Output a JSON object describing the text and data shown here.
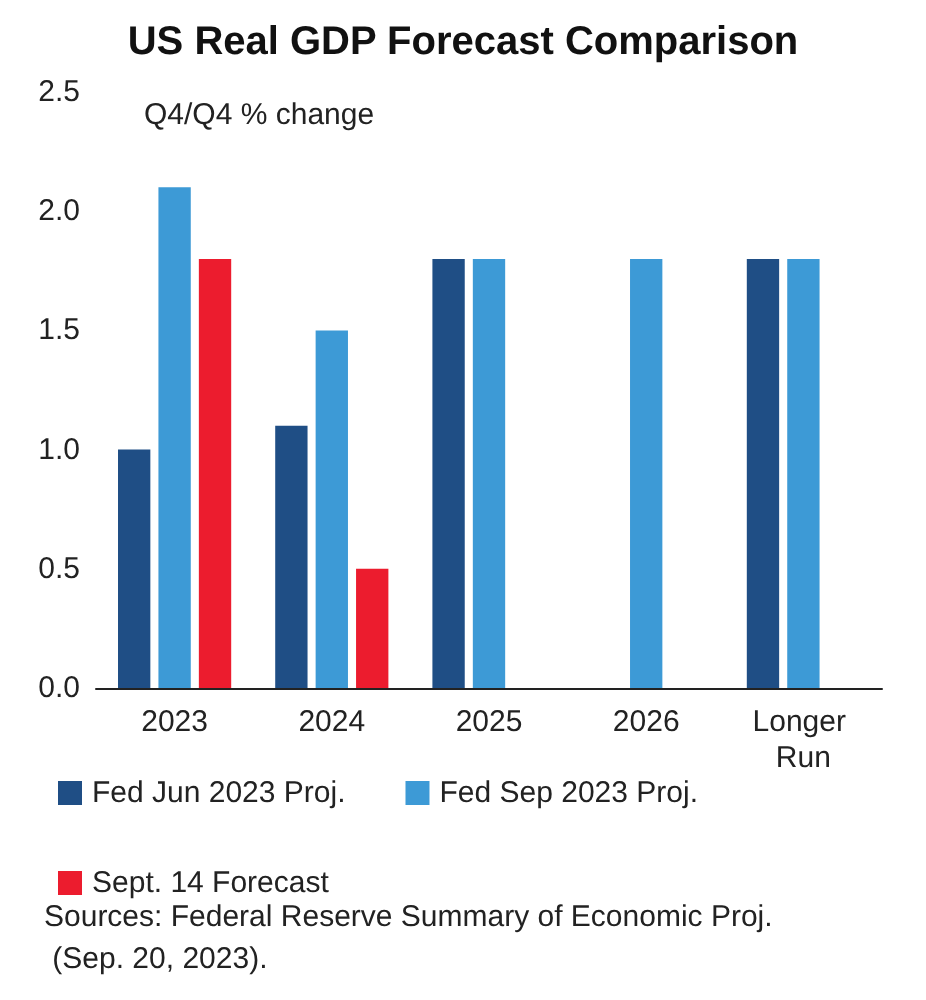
{
  "chart_data": {
    "type": "bar",
    "title": "US Real GDP Forecast Comparison",
    "ylabel": "Q4/Q4 % change",
    "categories": [
      "2023",
      "2024",
      "2025",
      "2026",
      "Longer Run"
    ],
    "series": [
      {
        "name": "Fed Jun 2023 Proj.",
        "color": "#1f4e85",
        "values": [
          1.0,
          1.1,
          1.8,
          null,
          1.8
        ]
      },
      {
        "name": "Fed Sep 2023 Proj.",
        "color": "#3d9ad6",
        "values": [
          2.1,
          1.5,
          1.8,
          1.8,
          1.8
        ]
      },
      {
        "name": "Sept. 14 Forecast",
        "color": "#ec1c2e",
        "values": [
          1.8,
          0.5,
          null,
          null,
          null
        ]
      }
    ],
    "ylim": [
      0,
      2.5
    ],
    "yticks": [
      {
        "value": 0,
        "label": "0.0"
      },
      {
        "value": 0.5,
        "label": "0.5"
      },
      {
        "value": 1,
        "label": "1.0"
      },
      {
        "value": 1.5,
        "label": "1.5"
      },
      {
        "value": 2,
        "label": "2.0"
      },
      {
        "value": 2.5,
        "label": "2.5"
      }
    ],
    "grid": false,
    "legend": "bottom",
    "annotations": [
      "Sources: Federal Reserve Summary of Economic Proj. (Sep. 20, 2023)."
    ]
  }
}
